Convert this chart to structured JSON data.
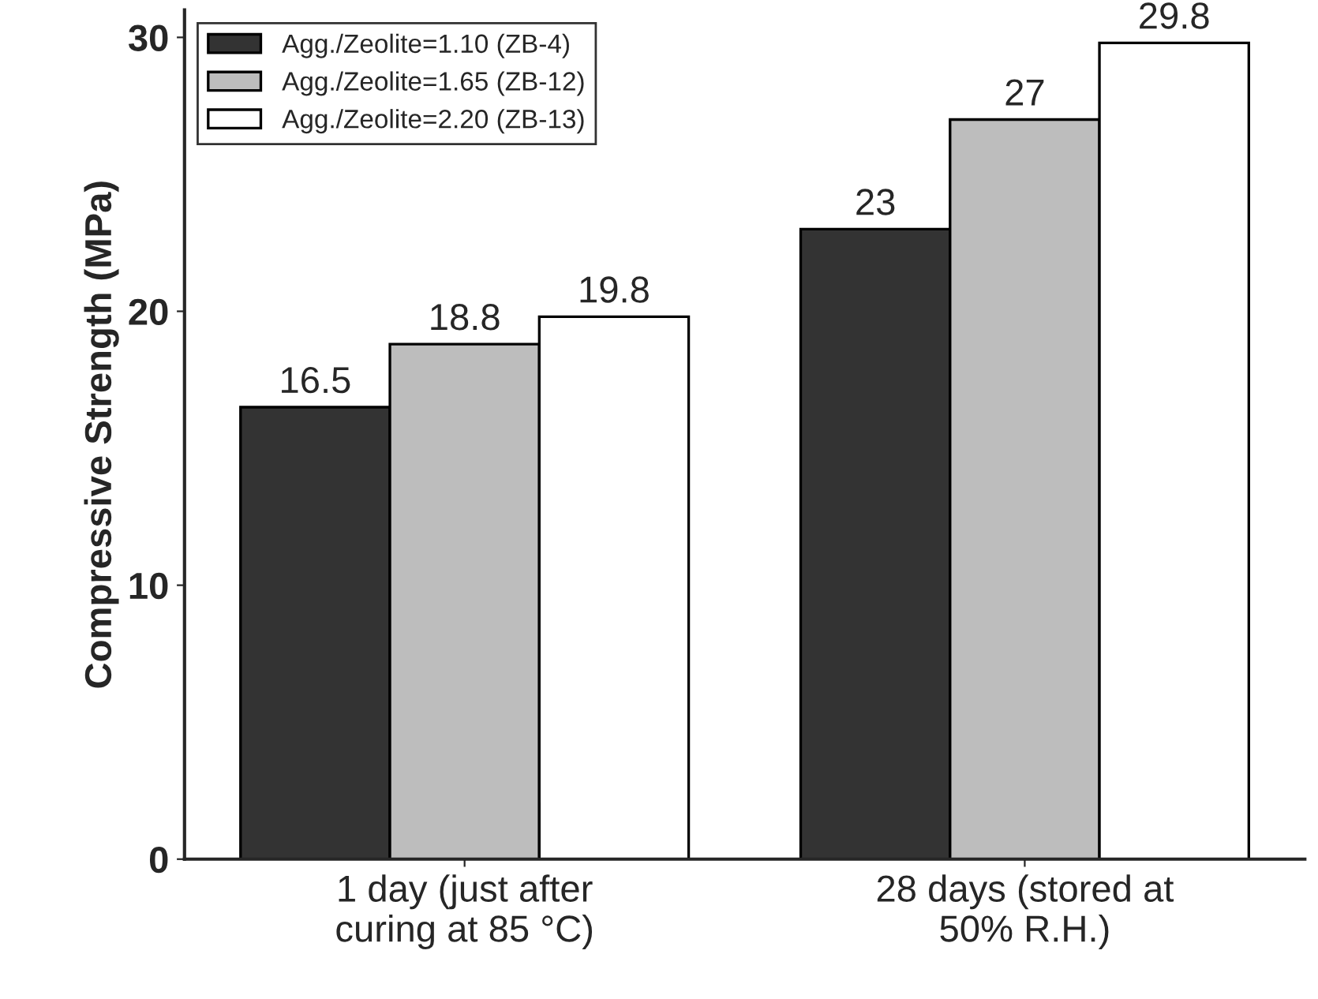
{
  "chart_data": {
    "type": "bar",
    "ylabel": "Compressive Strength (MPa)",
    "categories": [
      "1 day (just after\ncuring at 85 °C)",
      "28 days (stored at\n50% R.H.)"
    ],
    "series": [
      {
        "name": "Agg./Zeolite=1.10 (ZB-4)",
        "color": "#333333",
        "values": [
          16.5,
          23
        ]
      },
      {
        "name": "Agg./Zeolite=1.65 (ZB-12)",
        "color": "#bdbdbd",
        "values": [
          18.8,
          27
        ]
      },
      {
        "name": "Agg./Zeolite=2.20 (ZB-13)",
        "color": "#ffffff",
        "values": [
          19.8,
          29.8
        ]
      }
    ],
    "ylim": [
      0,
      31
    ],
    "yticks": [
      0,
      10,
      20,
      30
    ],
    "data_labels": true,
    "legend": "top left",
    "grid": false
  }
}
